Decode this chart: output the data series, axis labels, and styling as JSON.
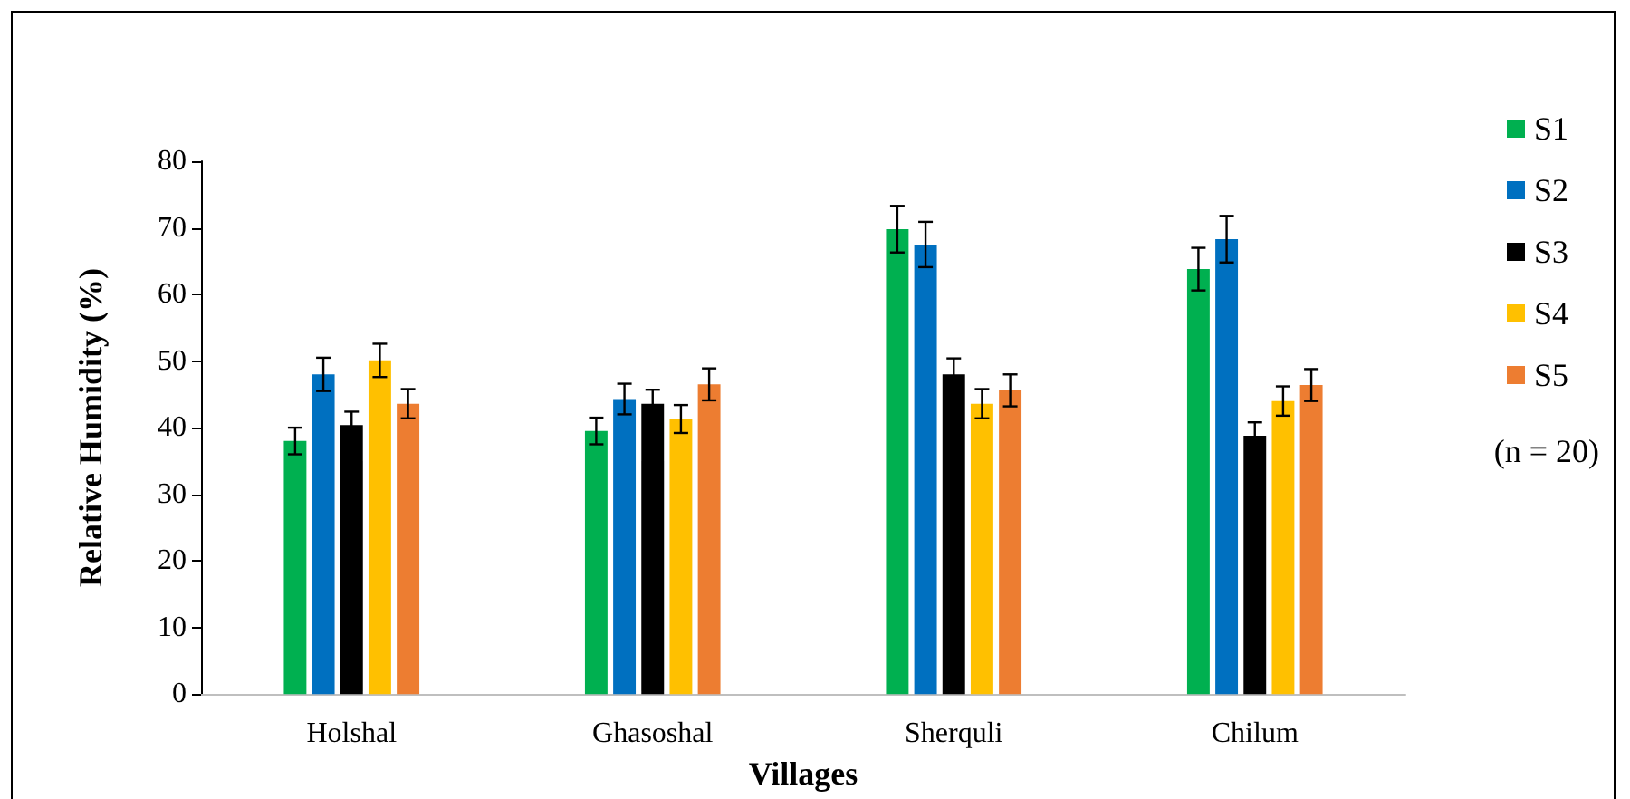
{
  "chart_data": {
    "type": "bar",
    "xlabel": "Villages",
    "ylabel": "Relative Humidity (%)",
    "categories": [
      "Holshal",
      "Ghasoshal",
      "Sherquli",
      "Chilum"
    ],
    "series": [
      {
        "name": "S1",
        "color": "#00b050",
        "values": [
          38.0,
          39.5,
          69.8,
          63.8
        ],
        "errors": [
          2.0,
          2.0,
          3.5,
          3.2
        ]
      },
      {
        "name": "S2",
        "color": "#0070c0",
        "values": [
          48.0,
          44.3,
          67.5,
          68.3
        ],
        "errors": [
          2.5,
          2.3,
          3.4,
          3.5
        ]
      },
      {
        "name": "S3",
        "color": "#000000",
        "values": [
          40.4,
          43.6,
          48.0,
          38.8
        ],
        "errors": [
          2.0,
          2.1,
          2.4,
          2.0
        ]
      },
      {
        "name": "S4",
        "color": "#ffc000",
        "values": [
          50.1,
          41.3,
          43.6,
          44.0
        ],
        "errors": [
          2.5,
          2.1,
          2.2,
          2.2
        ]
      },
      {
        "name": "S5",
        "color": "#ed7d31",
        "values": [
          43.6,
          46.5,
          45.6,
          46.4
        ],
        "errors": [
          2.2,
          2.4,
          2.4,
          2.4
        ]
      }
    ],
    "ylim": [
      0,
      80
    ],
    "yticks": [
      0,
      10,
      20,
      30,
      40,
      50,
      60,
      70,
      80
    ],
    "grid": false,
    "legend": "right",
    "annotations": [
      "(n = 20)"
    ]
  }
}
